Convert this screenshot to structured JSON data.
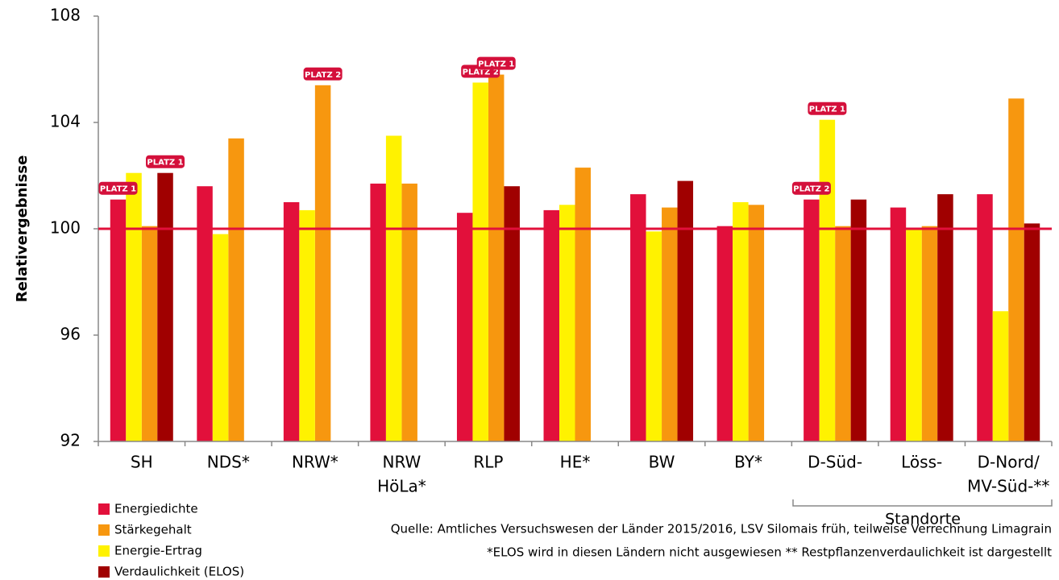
{
  "chart_data": {
    "type": "bar",
    "y_label": "Relativergebnisse",
    "categories": [
      [
        "SH"
      ],
      [
        "NDS*"
      ],
      [
        "NRW*"
      ],
      [
        "NRW",
        "HöLa*"
      ],
      [
        "RLP"
      ],
      [
        "HE*"
      ],
      [
        "BW"
      ],
      [
        "BY*"
      ],
      [
        "D-Süd-"
      ],
      [
        "Löss-"
      ],
      [
        "D-Nord/",
        "MV-Süd-**"
      ]
    ],
    "series": [
      {
        "name": "Energiedichte",
        "color": "#e2103b",
        "values": [
          101.1,
          101.6,
          101.0,
          101.7,
          100.6,
          100.7,
          101.3,
          100.1,
          101.1,
          100.8,
          101.3
        ]
      },
      {
        "name": "Stärkegehalt",
        "color": "#f7970f",
        "values": [
          100.1,
          103.4,
          105.4,
          101.7,
          105.8,
          102.3,
          100.8,
          100.9,
          100.1,
          100.1,
          104.9
        ]
      },
      {
        "name": "Energie-Ertrag",
        "color": "#fff200",
        "values": [
          102.1,
          99.8,
          100.7,
          103.5,
          105.5,
          100.9,
          99.9,
          101.0,
          104.1,
          100.0,
          96.9
        ]
      },
      {
        "name": "Verdaulichkeit (ELOS)",
        "color": "#a00000",
        "values": [
          102.1,
          null,
          null,
          null,
          101.6,
          null,
          101.8,
          null,
          101.1,
          101.3,
          100.2
        ]
      }
    ],
    "ylim": [
      92,
      108
    ],
    "yticks": [
      92,
      96,
      100,
      104,
      108
    ],
    "reference_line": {
      "value": 100,
      "color": "#e2103b"
    },
    "annotations": [
      {
        "text": "PLATZ 1",
        "category": 0,
        "series": 0
      },
      {
        "text": "PLATZ 1",
        "category": 0,
        "series": 3
      },
      {
        "text": "PLATZ 2",
        "category": 2,
        "series": 1
      },
      {
        "text": "PLATZ 2",
        "category": 4,
        "series": 2
      },
      {
        "text": "PLATZ 1",
        "category": 4,
        "series": 1
      },
      {
        "text": "PLATZ 2",
        "category": 8,
        "series": 0
      },
      {
        "text": "PLATZ 1",
        "category": 8,
        "series": 2
      }
    ],
    "group_label": "Standorte",
    "notes": [
      "Quelle: Amtliches Versuchswesen der Länder 2015/2016, LSV Silomais früh, teilweise Verrechnung Limagrain",
      "*ELOS wird in diesen Ländern nicht ausgewiesen  ** Restpflanzenverdaulichkeit ist dargestellt"
    ]
  }
}
